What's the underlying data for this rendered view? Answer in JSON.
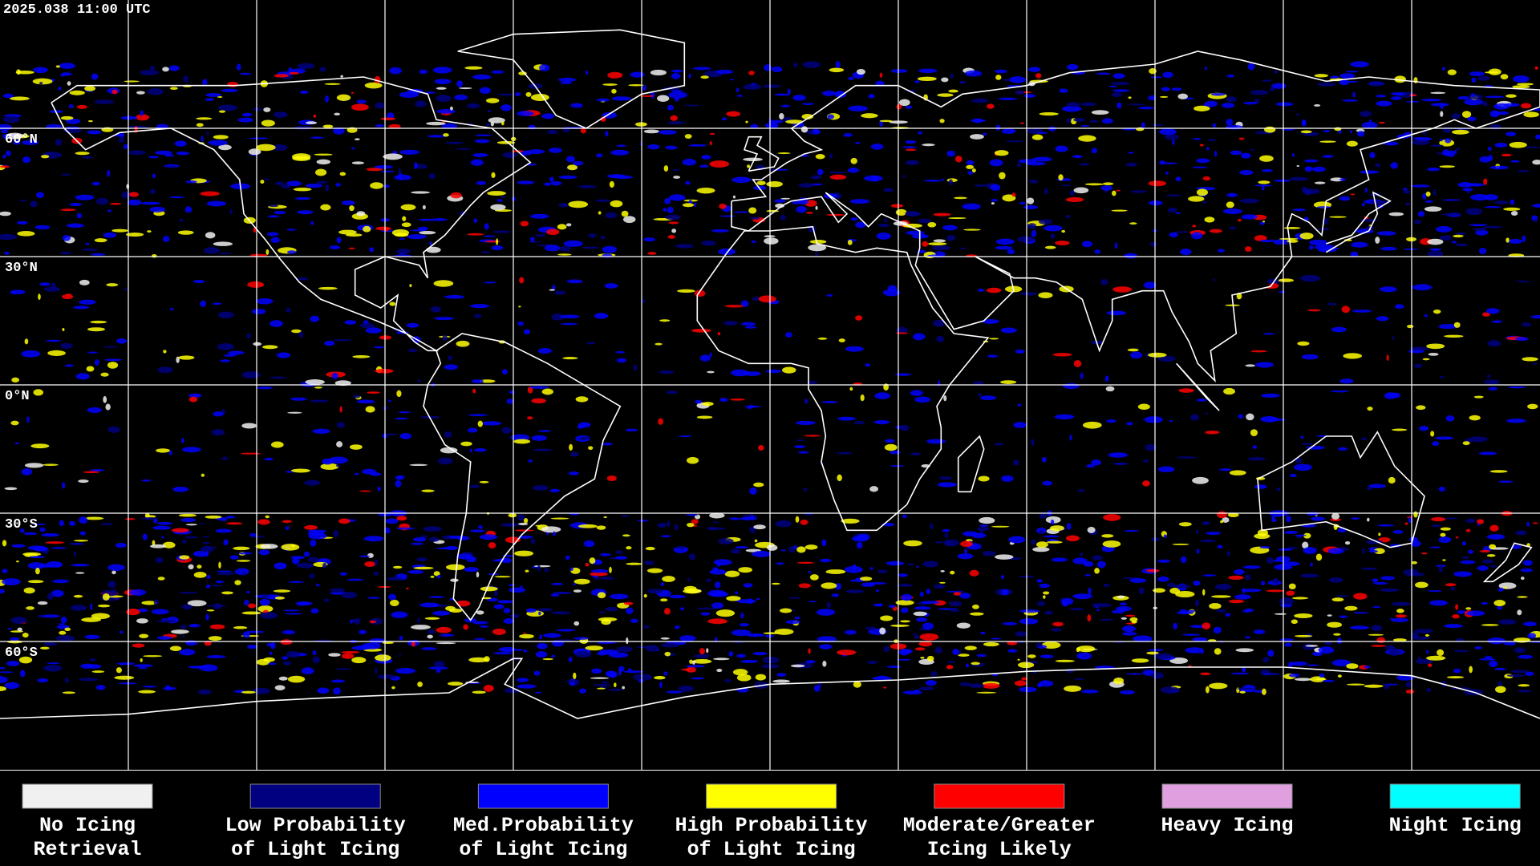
{
  "header": {
    "timestamp": "2025.038 11:00 UTC"
  },
  "map": {
    "latitude_labels": [
      {
        "text": "60°N",
        "lat": 60
      },
      {
        "text": "30°N",
        "lat": 30
      },
      {
        "text": "0°N",
        "lat": 0
      },
      {
        "text": "30°S",
        "lat": -30
      },
      {
        "text": "60°S",
        "lat": -60
      }
    ]
  },
  "legend": {
    "items": [
      {
        "lines": [
          "No Icing",
          "Retrieval"
        ],
        "color": "#f0f0f0"
      },
      {
        "lines": [
          "Low Probability",
          "of Light Icing"
        ],
        "color": "#000080"
      },
      {
        "lines": [
          "Med.Probability",
          "of Light Icing"
        ],
        "color": "#0000ff"
      },
      {
        "lines": [
          "High Probability",
          "of Light Icing"
        ],
        "color": "#ffff00"
      },
      {
        "lines": [
          "Moderate/Greater",
          "Icing Likely"
        ],
        "color": "#ff0000"
      },
      {
        "lines": [
          "Heavy Icing"
        ],
        "color": "#e0a0e0"
      },
      {
        "lines": [
          "Night Icing"
        ],
        "color": "#00ffff"
      }
    ]
  }
}
